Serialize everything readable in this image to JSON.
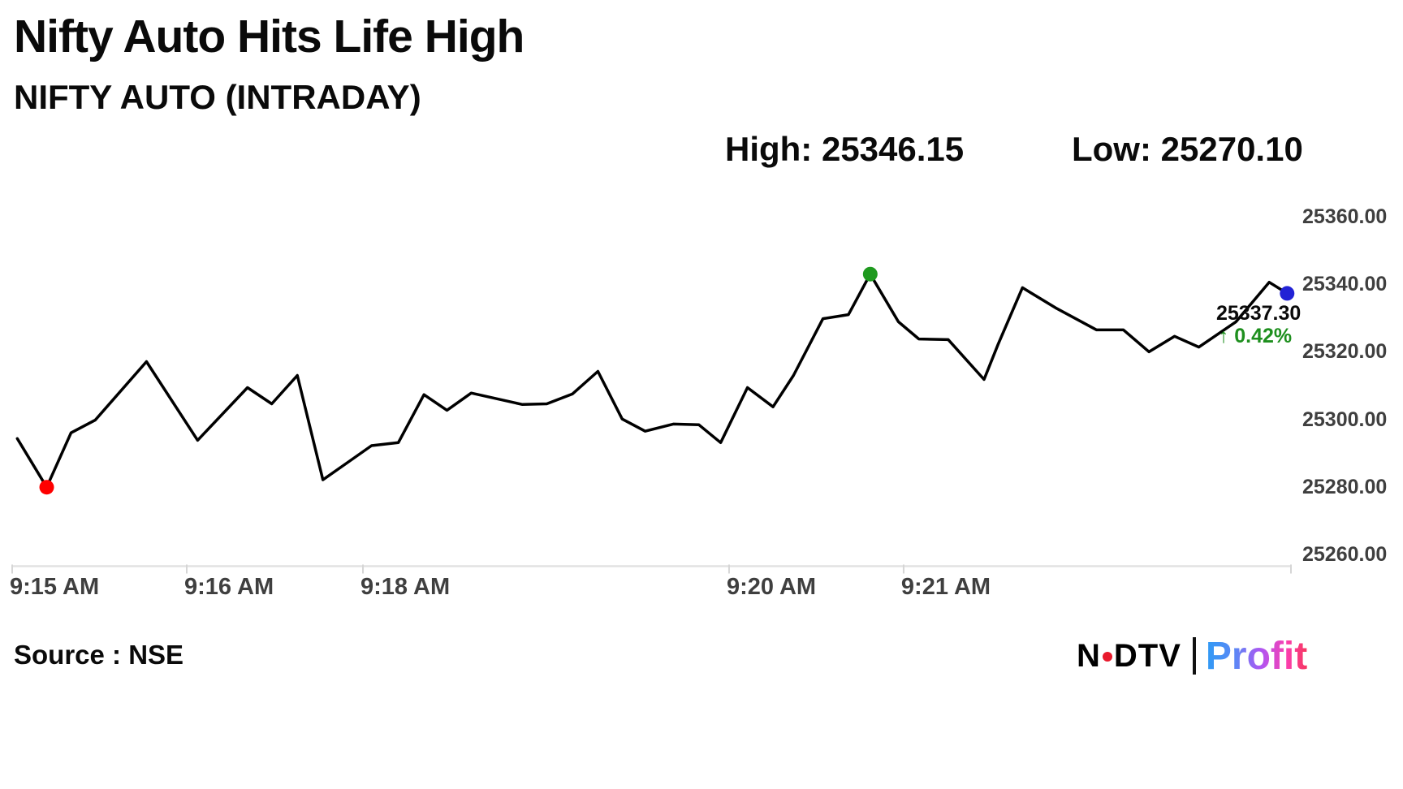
{
  "header": {
    "title": "Nifty Auto Hits Life High",
    "subtitle": "NIFTY AUTO (INTRADAY)",
    "high": "High: 25346.15",
    "low": "Low: 25270.10"
  },
  "annotation": {
    "last_price": "25337.30",
    "change": "↑ 0.42%"
  },
  "footer": {
    "source": "Source : NSE",
    "logo_n": "N",
    "logo_dtv": "DTV",
    "logo_profit": "Profit"
  },
  "colors": {
    "line": "#000000",
    "low_dot": "#fe0000",
    "high_dot": "#1f9a1f",
    "last_dot": "#2222d5",
    "change_text": "#1e8f1e",
    "axis_line": "#e2e2e2",
    "axis_tick": "#d6d6d6",
    "axis_label": "#3f3f3f",
    "logo_dot_red": "#e8192c"
  },
  "chart_data": {
    "type": "line",
    "title": "NIFTY AUTO (INTRADAY)",
    "xlabel": "",
    "ylabel": "",
    "grid": false,
    "legend": "none",
    "ylim": [
      25260,
      25360
    ],
    "y_ticks": [
      {
        "value": 25360,
        "label": "25360.00"
      },
      {
        "value": 25340,
        "label": "25340.00"
      },
      {
        "value": 25320,
        "label": "25320.00"
      },
      {
        "value": 25300,
        "label": "25300.00"
      },
      {
        "value": 25280,
        "label": "25280.00"
      },
      {
        "value": 25260,
        "label": "25260.00"
      }
    ],
    "x_ticks": [
      {
        "pos": 0.0,
        "label": "9:15 AM"
      },
      {
        "pos": 0.1365,
        "label": "9:16 AM"
      },
      {
        "pos": 0.2743,
        "label": "9:18 AM"
      },
      {
        "pos": 0.5606,
        "label": "9:20 AM"
      },
      {
        "pos": 0.6971,
        "label": "9:21 AM"
      },
      {
        "pos": 1.0,
        "label": ""
      }
    ],
    "series": [
      {
        "name": "NIFTY AUTO intraday price",
        "points": [
          [
            0.004,
            25294.3
          ],
          [
            0.027,
            25279.9
          ],
          [
            0.046,
            25296.0
          ],
          [
            0.065,
            25299.8
          ],
          [
            0.105,
            25317.1
          ],
          [
            0.145,
            25293.8
          ],
          [
            0.184,
            25309.4
          ],
          [
            0.203,
            25304.6
          ],
          [
            0.223,
            25313.0
          ],
          [
            0.243,
            25282.1
          ],
          [
            0.263,
            25287.4
          ],
          [
            0.281,
            25292.2
          ],
          [
            0.302,
            25293.1
          ],
          [
            0.322,
            25307.3
          ],
          [
            0.34,
            25302.7
          ],
          [
            0.359,
            25307.8
          ],
          [
            0.399,
            25304.4
          ],
          [
            0.418,
            25304.6
          ],
          [
            0.438,
            25307.5
          ],
          [
            0.458,
            25314.2
          ],
          [
            0.477,
            25300.1
          ],
          [
            0.495,
            25296.5
          ],
          [
            0.517,
            25298.6
          ],
          [
            0.537,
            25298.4
          ],
          [
            0.554,
            25293.1
          ],
          [
            0.575,
            25309.4
          ],
          [
            0.595,
            25303.7
          ],
          [
            0.611,
            25313.0
          ],
          [
            0.634,
            25329.8
          ],
          [
            0.654,
            25331.0
          ],
          [
            0.671,
            25343.0
          ],
          [
            0.693,
            25328.9
          ],
          [
            0.709,
            25323.8
          ],
          [
            0.732,
            25323.6
          ],
          [
            0.76,
            25311.8
          ],
          [
            0.771,
            25322.2
          ],
          [
            0.79,
            25339.0
          ],
          [
            0.816,
            25333.0
          ],
          [
            0.848,
            25326.5
          ],
          [
            0.869,
            25326.5
          ],
          [
            0.889,
            25320.0
          ],
          [
            0.909,
            25324.6
          ],
          [
            0.928,
            25321.4
          ],
          [
            0.957,
            25328.9
          ],
          [
            0.983,
            25340.6
          ],
          [
            0.997,
            25337.3
          ]
        ]
      }
    ],
    "markers": [
      {
        "name": "low-marker",
        "x": 0.027,
        "value": 25279.9,
        "color_key": "low_dot"
      },
      {
        "name": "high-marker",
        "x": 0.671,
        "value": 25343.0,
        "color_key": "high_dot"
      },
      {
        "name": "last-marker",
        "x": 0.997,
        "value": 25337.3,
        "color_key": "last_dot"
      }
    ],
    "stated_high": 25346.15,
    "stated_low": 25270.1,
    "last_price": 25337.3,
    "change_percent": 0.42
  }
}
